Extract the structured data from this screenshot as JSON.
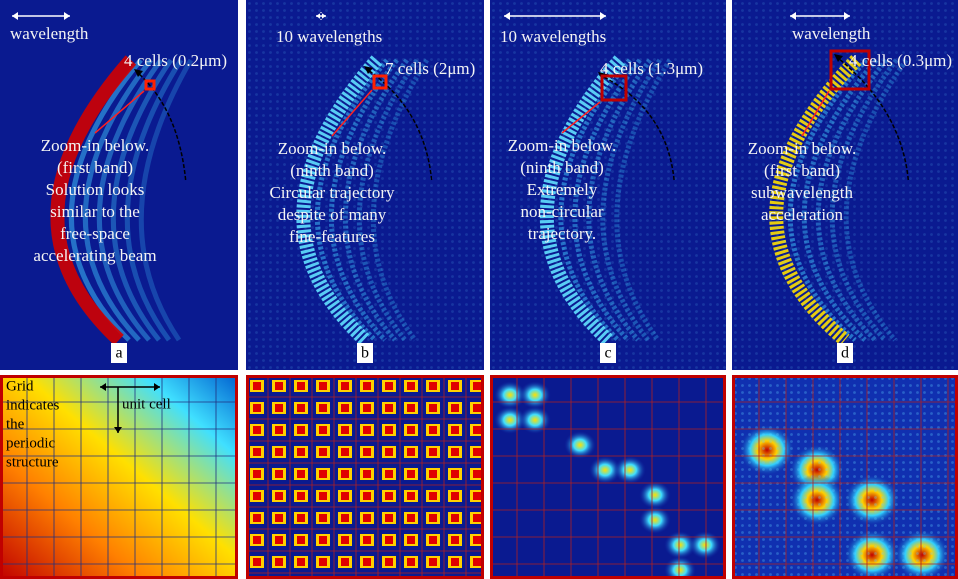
{
  "panels": [
    {
      "label": "a",
      "scale": "wavelength",
      "cells": "4 cells (0.2μm)",
      "note": [
        "Zoom-in below.",
        "(first band)",
        "Solution looks",
        "similar to the",
        "free-space",
        "accelerating beam"
      ]
    },
    {
      "label": "b",
      "scale": "10 wavelengths",
      "cells": "7 cells (2μm)",
      "note": [
        "Zoom-in below.",
        "(ninth band)",
        "Circular trajectory",
        "despite of many",
        "fine-features"
      ]
    },
    {
      "label": "c",
      "scale": "10 wavelengths",
      "cells": "4 cells (1.3μm)",
      "note": [
        "Zoom-in below.",
        "(ninth band)",
        "Extremely",
        "non-circular",
        "trajectory."
      ]
    },
    {
      "label": "d",
      "scale": "wavelength",
      "cells": "4 cells (0.3μm)",
      "note": [
        "Zoom-in below.",
        "(first band)",
        "subwavelength",
        "acceleration"
      ]
    }
  ],
  "zoom": {
    "grid_note": [
      "Grid",
      "indicates",
      "the",
      "periodic",
      "structure"
    ],
    "unit_cell": "unit cell"
  }
}
